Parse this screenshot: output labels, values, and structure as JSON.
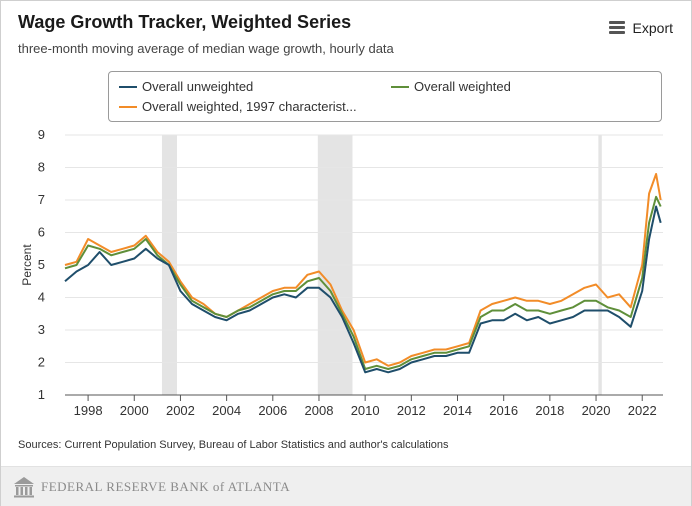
{
  "header": {
    "title": "Wage Growth Tracker, Weighted Series",
    "subtitle": "three-month moving average of median wage growth, hourly data",
    "export_label": "Export"
  },
  "legend": {
    "items": [
      {
        "label": "Overall unweighted",
        "color": "#1f4e6b"
      },
      {
        "label": "Overall weighted",
        "color": "#5f8f3a"
      },
      {
        "label": "Overall weighted, 1997 characterist...",
        "color": "#f28c28"
      }
    ]
  },
  "sources": "Sources: Current Population Survey, Bureau of Labor Statistics and author's calculations",
  "footer": {
    "brand": "FEDERAL RESERVE BANK of ATLANTA"
  },
  "chart_data": {
    "type": "line",
    "xlim": [
      1997,
      2022.9
    ],
    "ylim": [
      1,
      9
    ],
    "ylabel": "Percent",
    "x_ticks": [
      1998,
      2000,
      2002,
      2004,
      2006,
      2008,
      2010,
      2012,
      2014,
      2016,
      2018,
      2020,
      2022
    ],
    "y_ticks": [
      1,
      2,
      3,
      4,
      5,
      6,
      7,
      8,
      9
    ],
    "grid": true,
    "recessions": [
      [
        2001.2,
        2001.85
      ],
      [
        2007.95,
        2009.45
      ],
      [
        2020.1,
        2020.25
      ]
    ],
    "series": [
      {
        "name": "Overall unweighted",
        "color": "#1f4e6b",
        "x": [
          1997.0,
          1997.5,
          1998.0,
          1998.5,
          1999.0,
          1999.5,
          2000.0,
          2000.5,
          2001.0,
          2001.5,
          2002.0,
          2002.5,
          2003.0,
          2003.5,
          2004.0,
          2004.5,
          2005.0,
          2005.5,
          2006.0,
          2006.5,
          2007.0,
          2007.5,
          2008.0,
          2008.5,
          2009.0,
          2009.5,
          2010.0,
          2010.5,
          2011.0,
          2011.5,
          2012.0,
          2012.5,
          2013.0,
          2013.5,
          2014.0,
          2014.5,
          2015.0,
          2015.5,
          2016.0,
          2016.5,
          2017.0,
          2017.5,
          2018.0,
          2018.5,
          2019.0,
          2019.5,
          2020.0,
          2020.5,
          2021.0,
          2021.5,
          2022.0,
          2022.3,
          2022.6,
          2022.8
        ],
        "values": [
          4.5,
          4.8,
          5.0,
          5.4,
          5.0,
          5.1,
          5.2,
          5.5,
          5.2,
          5.0,
          4.2,
          3.8,
          3.6,
          3.4,
          3.3,
          3.5,
          3.6,
          3.8,
          4.0,
          4.1,
          4.0,
          4.3,
          4.3,
          4.0,
          3.4,
          2.6,
          1.7,
          1.8,
          1.7,
          1.8,
          2.0,
          2.1,
          2.2,
          2.2,
          2.3,
          2.3,
          3.2,
          3.3,
          3.3,
          3.5,
          3.3,
          3.4,
          3.2,
          3.3,
          3.4,
          3.6,
          3.6,
          3.6,
          3.4,
          3.1,
          4.2,
          5.8,
          6.8,
          6.3
        ]
      },
      {
        "name": "Overall weighted",
        "color": "#5f8f3a",
        "x": [
          1997.0,
          1997.5,
          1998.0,
          1998.5,
          1999.0,
          1999.5,
          2000.0,
          2000.5,
          2001.0,
          2001.5,
          2002.0,
          2002.5,
          2003.0,
          2003.5,
          2004.0,
          2004.5,
          2005.0,
          2005.5,
          2006.0,
          2006.5,
          2007.0,
          2007.5,
          2008.0,
          2008.5,
          2009.0,
          2009.5,
          2010.0,
          2010.5,
          2011.0,
          2011.5,
          2012.0,
          2012.5,
          2013.0,
          2013.5,
          2014.0,
          2014.5,
          2015.0,
          2015.5,
          2016.0,
          2016.5,
          2017.0,
          2017.5,
          2018.0,
          2018.5,
          2019.0,
          2019.5,
          2020.0,
          2020.5,
          2021.0,
          2021.5,
          2022.0,
          2022.3,
          2022.6,
          2022.8
        ],
        "values": [
          4.9,
          5.0,
          5.6,
          5.5,
          5.3,
          5.4,
          5.5,
          5.8,
          5.3,
          5.0,
          4.4,
          3.9,
          3.7,
          3.5,
          3.4,
          3.6,
          3.7,
          3.9,
          4.1,
          4.2,
          4.2,
          4.5,
          4.6,
          4.2,
          3.5,
          2.8,
          1.8,
          1.9,
          1.8,
          1.9,
          2.1,
          2.2,
          2.3,
          2.3,
          2.4,
          2.5,
          3.4,
          3.6,
          3.6,
          3.8,
          3.6,
          3.6,
          3.5,
          3.6,
          3.7,
          3.9,
          3.9,
          3.7,
          3.6,
          3.4,
          4.6,
          6.3,
          7.1,
          6.8
        ]
      },
      {
        "name": "Overall weighted, 1997 characterist...",
        "color": "#f28c28",
        "x": [
          1997.0,
          1997.5,
          1998.0,
          1998.5,
          1999.0,
          1999.5,
          2000.0,
          2000.5,
          2001.0,
          2001.5,
          2002.0,
          2002.5,
          2003.0,
          2003.5,
          2004.0,
          2004.5,
          2005.0,
          2005.5,
          2006.0,
          2006.5,
          2007.0,
          2007.5,
          2008.0,
          2008.5,
          2009.0,
          2009.5,
          2010.0,
          2010.5,
          2011.0,
          2011.5,
          2012.0,
          2012.5,
          2013.0,
          2013.5,
          2014.0,
          2014.5,
          2015.0,
          2015.5,
          2016.0,
          2016.5,
          2017.0,
          2017.5,
          2018.0,
          2018.5,
          2019.0,
          2019.5,
          2020.0,
          2020.5,
          2021.0,
          2021.5,
          2022.0,
          2022.3,
          2022.6,
          2022.8
        ],
        "values": [
          5.0,
          5.1,
          5.8,
          5.6,
          5.4,
          5.5,
          5.6,
          5.9,
          5.4,
          5.1,
          4.5,
          4.0,
          3.8,
          3.5,
          3.4,
          3.6,
          3.8,
          4.0,
          4.2,
          4.3,
          4.3,
          4.7,
          4.8,
          4.4,
          3.6,
          3.0,
          2.0,
          2.1,
          1.9,
          2.0,
          2.2,
          2.3,
          2.4,
          2.4,
          2.5,
          2.6,
          3.6,
          3.8,
          3.9,
          4.0,
          3.9,
          3.9,
          3.8,
          3.9,
          4.1,
          4.3,
          4.4,
          4.0,
          4.1,
          3.7,
          5.0,
          7.2,
          7.8,
          7.0
        ]
      }
    ]
  }
}
